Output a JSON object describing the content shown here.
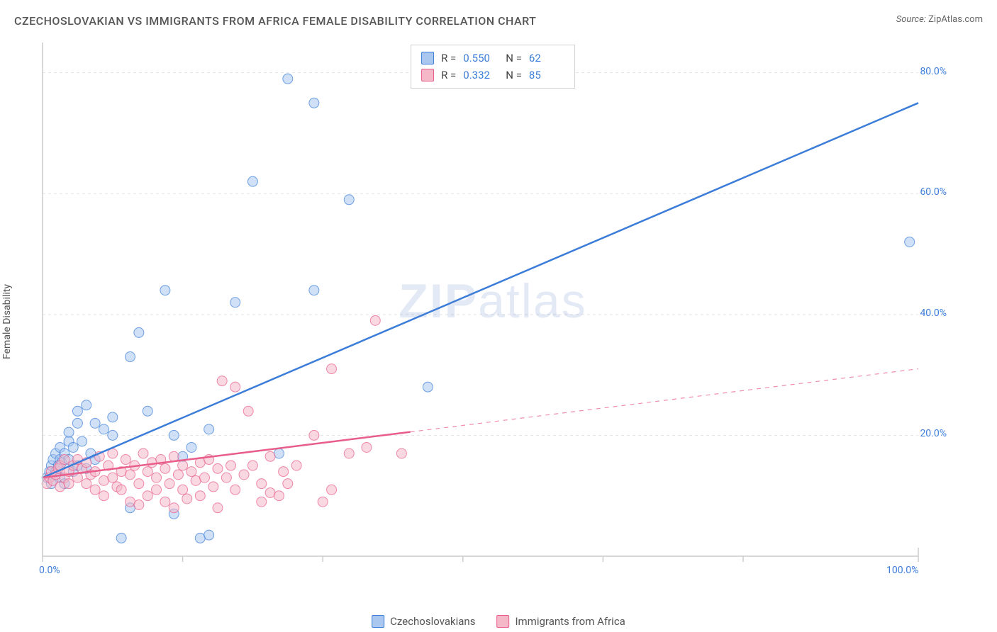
{
  "title": "CZECHOSLOVAKIAN VS IMMIGRANTS FROM AFRICA FEMALE DISABILITY CORRELATION CHART",
  "source_label": "Source:",
  "source_value": "ZipAtlas.com",
  "y_axis_label": "Female Disability",
  "watermark": {
    "bold": "ZIP",
    "rest": "atlas"
  },
  "chart": {
    "type": "scatter",
    "background_color": "#ffffff",
    "grid_color": "#e4e4e4",
    "axis_color": "#cccccc",
    "xlim": [
      0,
      100
    ],
    "ylim": [
      0,
      85
    ],
    "x_ticks": [
      0,
      16,
      32,
      48,
      64,
      80,
      100
    ],
    "x_tick_labels": {
      "0": "0.0%",
      "100": "100.0%"
    },
    "y_ticks": [
      20,
      40,
      60,
      80
    ],
    "y_tick_labels": {
      "20": "20.0%",
      "40": "40.0%",
      "60": "60.0%",
      "80": "80.0%"
    },
    "marker_radius": 7,
    "marker_opacity": 0.55,
    "line_width": 2.5,
    "series": [
      {
        "id": "czech",
        "name": "Czechoslovakians",
        "color_stroke": "#3b7dd8",
        "color_fill": "#a9c7ef",
        "r_value": "0.550",
        "n_value": "62",
        "trend": {
          "x1": 0,
          "y1": 13,
          "x2": 100,
          "y2": 75,
          "dashed_from": null
        },
        "points": [
          [
            0.5,
            13
          ],
          [
            0.8,
            14
          ],
          [
            1,
            12
          ],
          [
            1,
            15
          ],
          [
            1.2,
            16
          ],
          [
            1.5,
            17
          ],
          [
            1.5,
            14
          ],
          [
            1.8,
            15
          ],
          [
            2,
            16
          ],
          [
            2,
            13
          ],
          [
            2,
            18
          ],
          [
            2.2,
            15.5
          ],
          [
            2.5,
            17
          ],
          [
            2.5,
            12
          ],
          [
            3,
            19
          ],
          [
            3,
            16
          ],
          [
            3,
            20.5
          ],
          [
            3.5,
            14
          ],
          [
            3.5,
            18
          ],
          [
            4,
            22
          ],
          [
            4,
            15
          ],
          [
            4,
            24
          ],
          [
            4.5,
            19
          ],
          [
            5,
            14.5
          ],
          [
            5,
            25
          ],
          [
            5.5,
            17
          ],
          [
            6,
            22
          ],
          [
            6,
            16
          ],
          [
            7,
            21
          ],
          [
            8,
            20
          ],
          [
            8,
            23
          ],
          [
            9,
            3
          ],
          [
            10,
            8
          ],
          [
            10,
            33
          ],
          [
            11,
            37
          ],
          [
            12,
            24
          ],
          [
            14,
            44
          ],
          [
            15,
            7
          ],
          [
            15,
            20
          ],
          [
            16,
            16.5
          ],
          [
            17,
            18
          ],
          [
            18,
            3
          ],
          [
            19,
            3.5
          ],
          [
            19,
            21
          ],
          [
            22,
            42
          ],
          [
            24,
            62
          ],
          [
            27,
            17
          ],
          [
            28,
            79
          ],
          [
            31,
            44
          ],
          [
            31,
            75
          ],
          [
            35,
            59
          ],
          [
            44,
            28
          ],
          [
            99,
            52
          ]
        ]
      },
      {
        "id": "africa",
        "name": "Immigrants from Africa",
        "color_stroke": "#e85d8a",
        "color_fill": "#f4b8c8",
        "r_value": "0.332",
        "n_value": "85",
        "trend": {
          "x1": 0,
          "y1": 13,
          "x2": 100,
          "y2": 31,
          "dashed_from": 42
        },
        "points": [
          [
            0.5,
            12
          ],
          [
            0.8,
            13
          ],
          [
            1,
            14
          ],
          [
            1.2,
            12.5
          ],
          [
            1.5,
            13.5
          ],
          [
            1.8,
            14.5
          ],
          [
            2,
            11.5
          ],
          [
            2,
            15
          ],
          [
            2.5,
            13
          ],
          [
            2.5,
            16
          ],
          [
            3,
            14
          ],
          [
            3,
            12
          ],
          [
            3.5,
            15
          ],
          [
            4,
            13
          ],
          [
            4,
            16
          ],
          [
            4.5,
            14.5
          ],
          [
            5,
            12
          ],
          [
            5,
            15.5
          ],
          [
            5.5,
            13.5
          ],
          [
            6,
            11
          ],
          [
            6,
            14
          ],
          [
            6.5,
            16.5
          ],
          [
            7,
            12.5
          ],
          [
            7,
            10
          ],
          [
            7.5,
            15
          ],
          [
            8,
            13
          ],
          [
            8,
            17
          ],
          [
            8.5,
            11.5
          ],
          [
            9,
            11
          ],
          [
            9,
            14
          ],
          [
            9.5,
            16
          ],
          [
            10,
            9
          ],
          [
            10,
            13.5
          ],
          [
            10.5,
            15
          ],
          [
            11,
            12
          ],
          [
            11,
            8.5
          ],
          [
            11.5,
            17
          ],
          [
            12,
            14
          ],
          [
            12,
            10
          ],
          [
            12.5,
            15.5
          ],
          [
            13,
            13
          ],
          [
            13,
            11
          ],
          [
            13.5,
            16
          ],
          [
            14,
            9
          ],
          [
            14,
            14.5
          ],
          [
            14.5,
            12
          ],
          [
            15,
            8
          ],
          [
            15,
            16.5
          ],
          [
            15.5,
            13.5
          ],
          [
            16,
            15
          ],
          [
            16,
            11
          ],
          [
            16.5,
            9.5
          ],
          [
            17,
            14
          ],
          [
            17.5,
            12.5
          ],
          [
            18,
            15.5
          ],
          [
            18,
            10
          ],
          [
            18.5,
            13
          ],
          [
            19,
            16
          ],
          [
            19.5,
            11.5
          ],
          [
            20,
            14.5
          ],
          [
            20,
            8
          ],
          [
            20.5,
            29
          ],
          [
            21,
            13
          ],
          [
            21.5,
            15
          ],
          [
            22,
            11
          ],
          [
            22,
            28
          ],
          [
            23,
            13.5
          ],
          [
            23.5,
            24
          ],
          [
            24,
            15
          ],
          [
            25,
            12
          ],
          [
            25,
            9
          ],
          [
            26,
            10.5
          ],
          [
            26,
            16.5
          ],
          [
            27,
            10
          ],
          [
            27.5,
            14
          ],
          [
            28,
            12
          ],
          [
            29,
            15
          ],
          [
            31,
            20
          ],
          [
            32,
            9
          ],
          [
            33,
            11
          ],
          [
            33,
            31
          ],
          [
            35,
            17
          ],
          [
            37,
            18
          ],
          [
            38,
            39
          ],
          [
            41,
            17
          ]
        ]
      }
    ]
  },
  "stats_box": {
    "r_label": "R =",
    "n_label": "N ="
  },
  "legend": {
    "items": [
      "Czechoslovakians",
      "Immigrants from Africa"
    ]
  }
}
